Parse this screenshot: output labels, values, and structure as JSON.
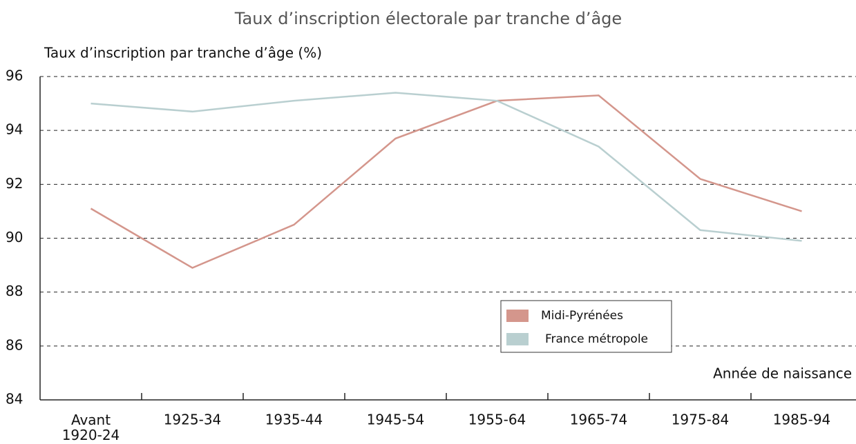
{
  "chart_data": {
    "type": "line",
    "title": "Taux d’inscription électorale par tranche d’âge",
    "y_label": "Taux d’inscription par tranche d’âge (%)",
    "x_label": "Année de naissance",
    "categories": [
      "Avant\n1920-24",
      "1925-34",
      "1935-44",
      "1945-54",
      "1955-64",
      "1965-74",
      "1975-84",
      "1985-94"
    ],
    "series": [
      {
        "name": "Midi-Pyrénées",
        "color": "#d4968c",
        "values": [
          91.1,
          88.9,
          90.5,
          93.7,
          95.1,
          95.3,
          92.2,
          91.0
        ]
      },
      {
        "name": "France métropole",
        "color": "#b9cfd0",
        "values": [
          95.0,
          94.7,
          95.1,
          95.4,
          95.1,
          93.4,
          90.3,
          89.9
        ]
      }
    ],
    "ylim": [
      84,
      96
    ],
    "yticks": [
      84,
      86,
      88,
      90,
      92,
      94,
      96
    ],
    "grid": true
  }
}
